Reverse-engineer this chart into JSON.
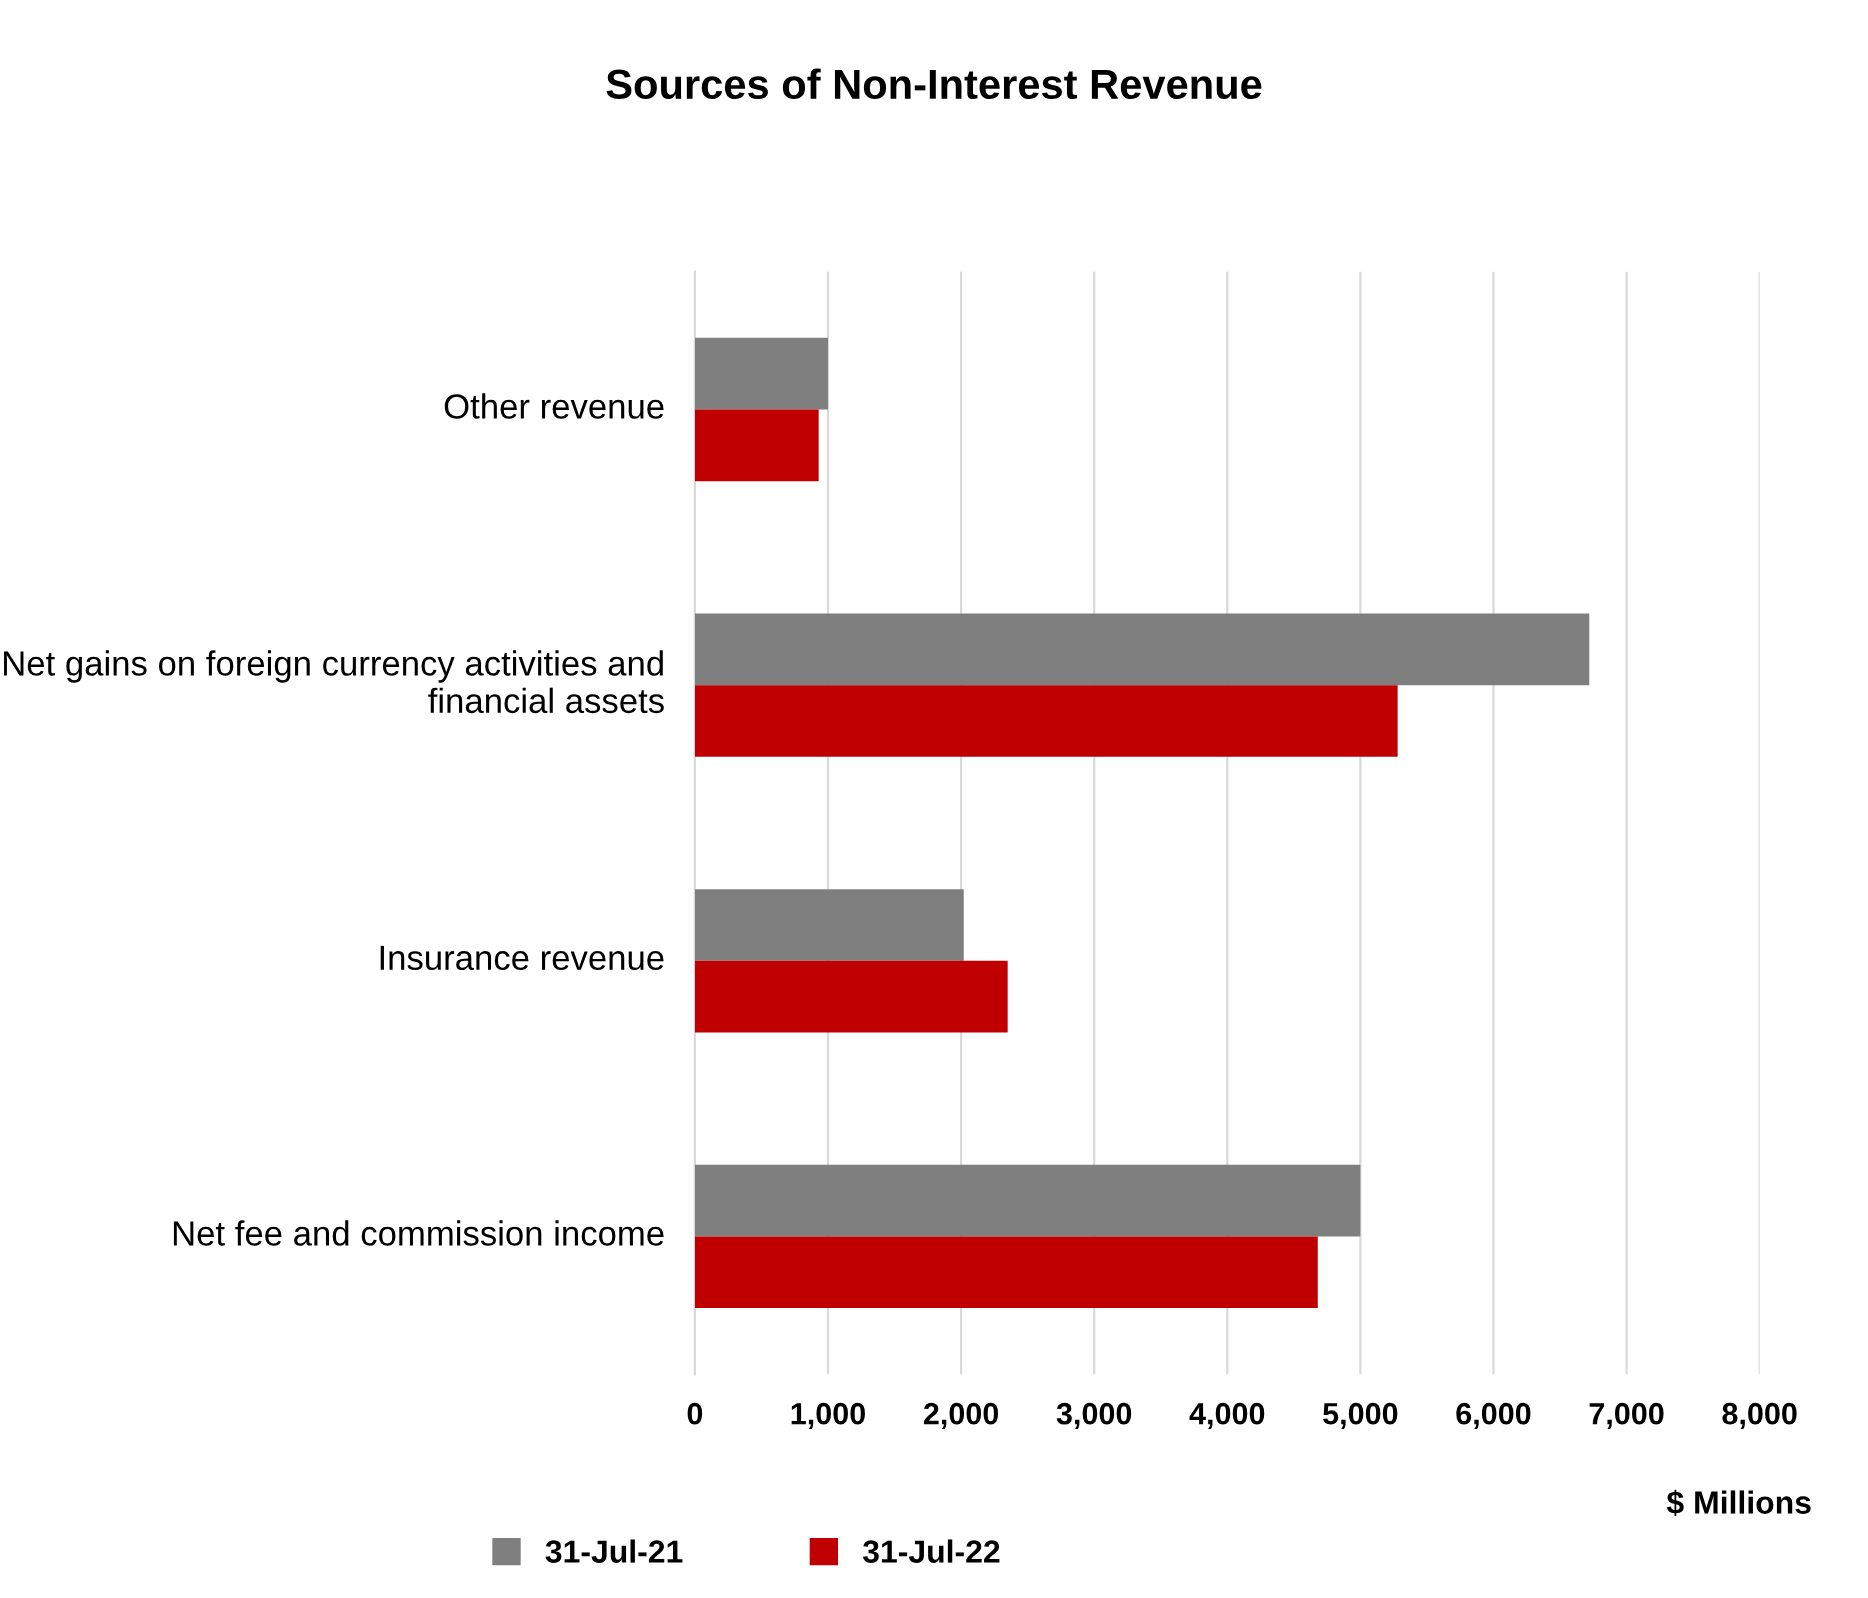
{
  "chart_data": {
    "type": "bar",
    "orientation": "horizontal",
    "title": "Sources of Non-Interest Revenue",
    "xlabel": "$ Millions",
    "categories": [
      "Other revenue",
      "Net gains on foreign currency activities and financial assets",
      "Insurance revenue",
      "Net fee and commission income"
    ],
    "series": [
      {
        "name": "31-Jul-21",
        "color": "#7f7f7f",
        "values": [
          1000,
          6720,
          2020,
          5000
        ]
      },
      {
        "name": "31-Jul-22",
        "color": "#c00000",
        "values": [
          930,
          5280,
          2350,
          4680
        ]
      }
    ],
    "xlim": [
      0,
      8000
    ],
    "xticks": [
      {
        "value": 0,
        "label": "0"
      },
      {
        "value": 1000,
        "label": "1,000"
      },
      {
        "value": 2000,
        "label": "2,000"
      },
      {
        "value": 3000,
        "label": "3,000"
      },
      {
        "value": 4000,
        "label": "4,000"
      },
      {
        "value": 5000,
        "label": "5,000"
      },
      {
        "value": 6000,
        "label": "6,000"
      },
      {
        "value": 7000,
        "label": "7,000"
      },
      {
        "value": 8000,
        "label": "8,000"
      }
    ],
    "grid": "x",
    "legend": "bottom"
  }
}
